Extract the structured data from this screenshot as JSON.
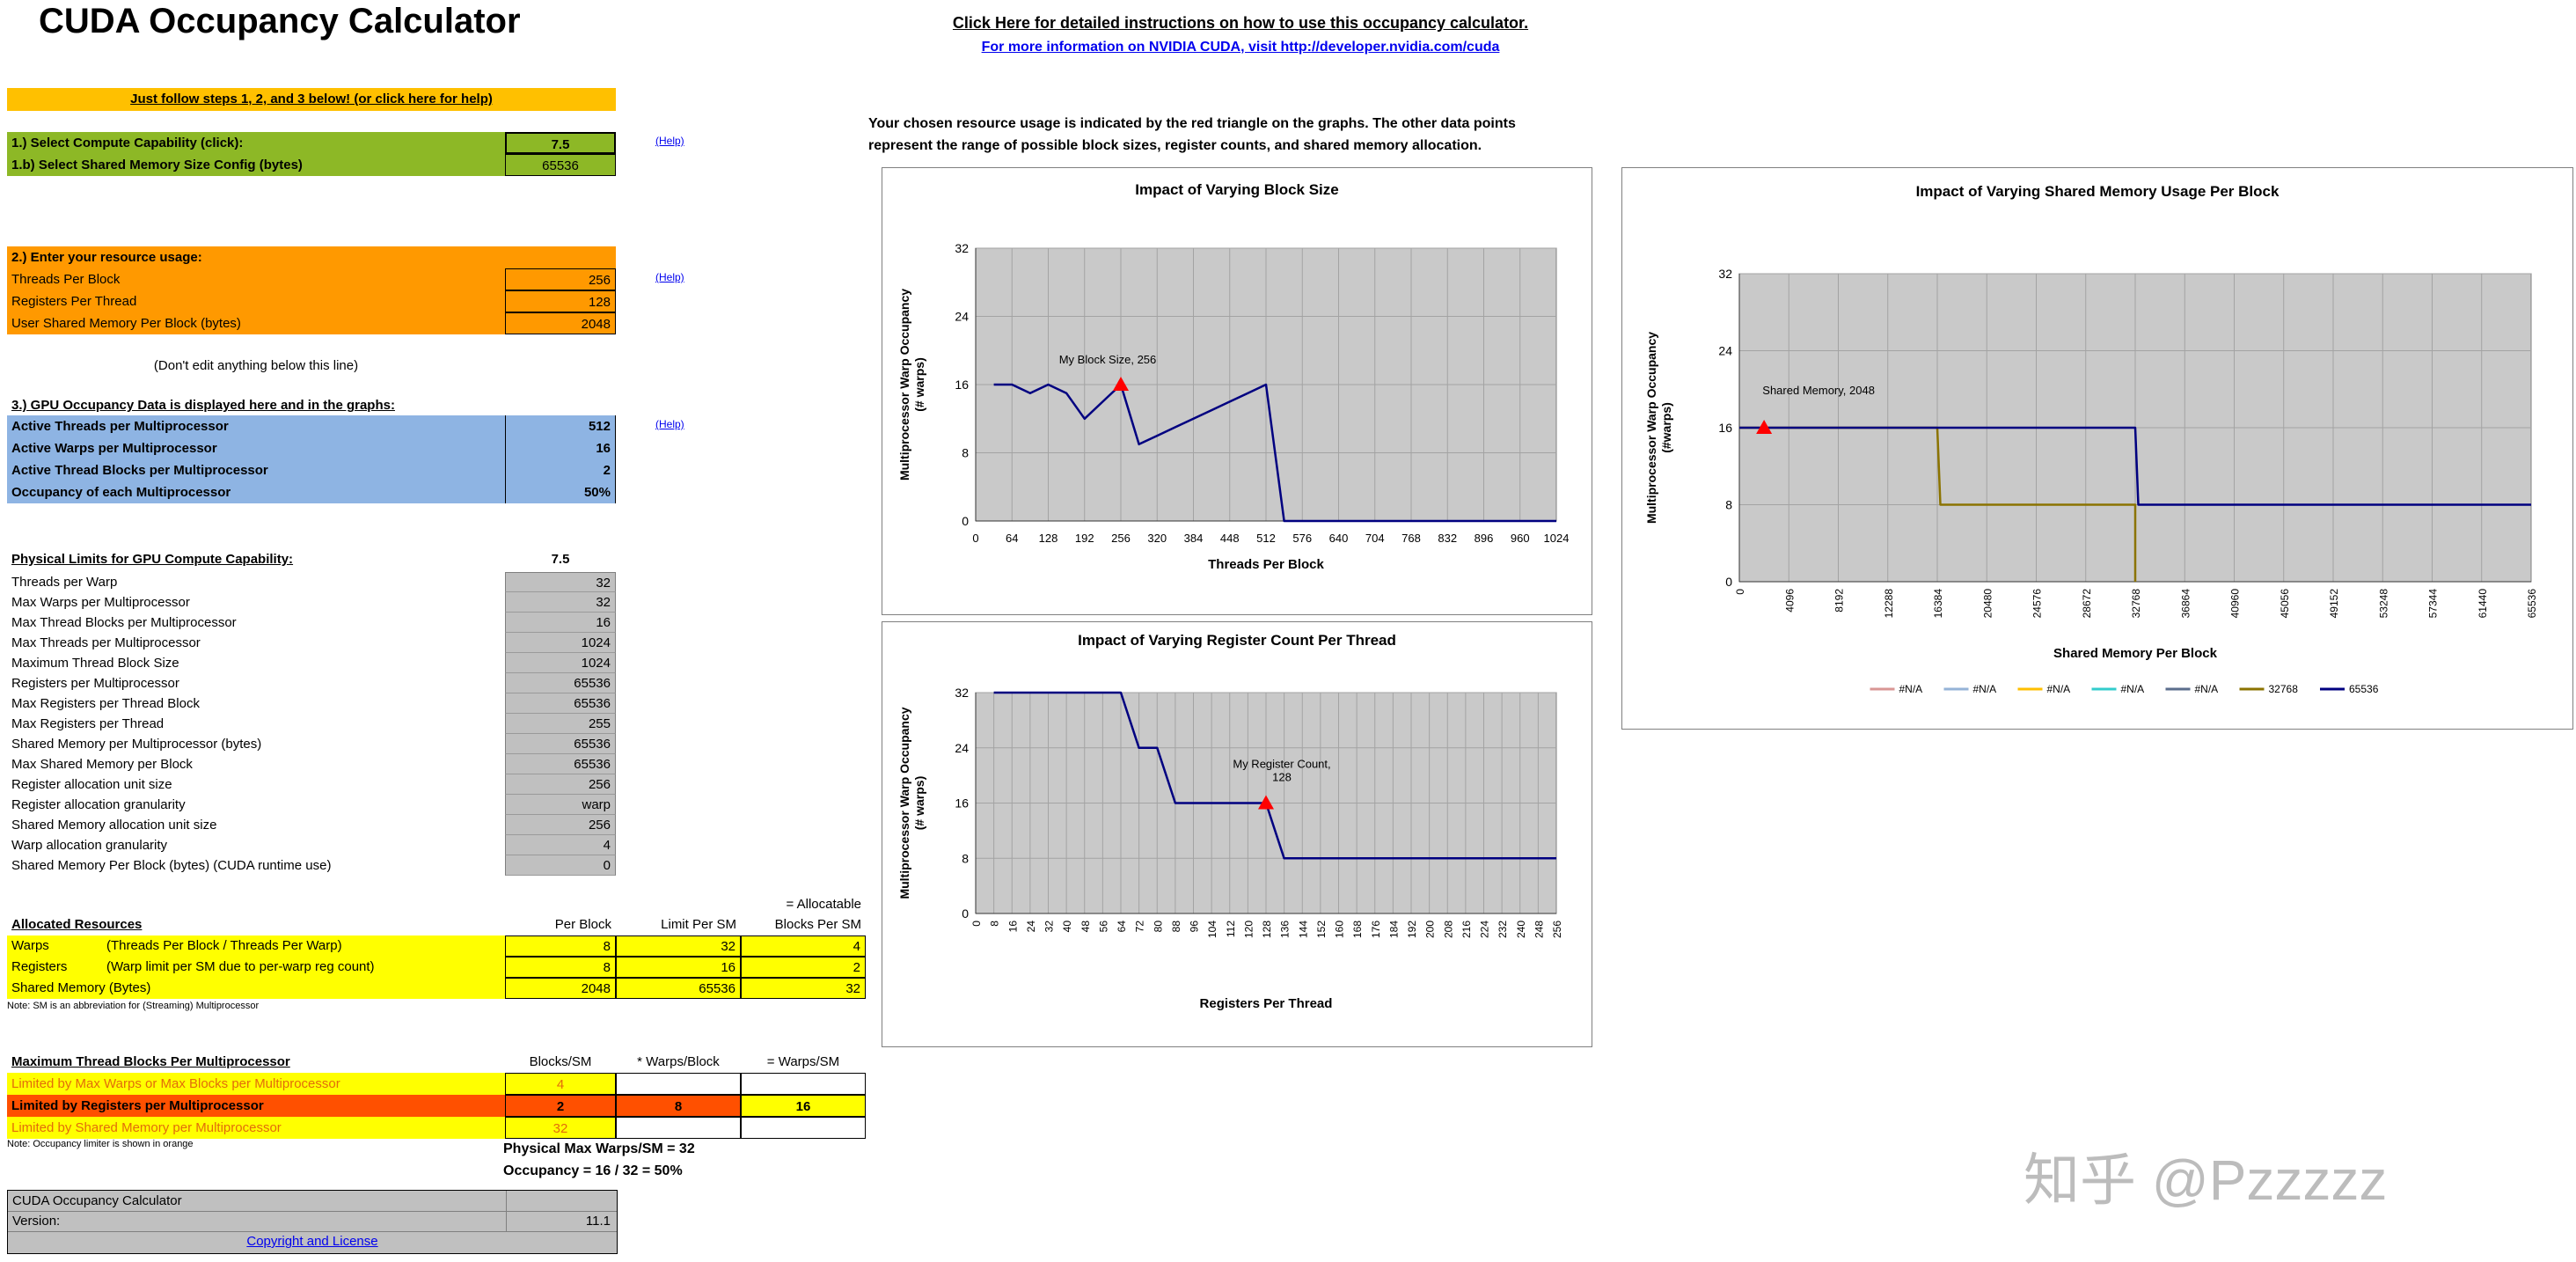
{
  "app": {
    "title": "CUDA Occupancy Calculator"
  },
  "header": {
    "link1": "Click Here for detailed instructions on how to use this occupancy calculator.",
    "link2": "For more information on NVIDIA CUDA, visit http://developer.nvidia.com/cuda",
    "desc1": "Your chosen resource usage is indicated by the red triangle on the graphs.  The other data points",
    "desc2": "represent the range of possible block sizes, register counts, and shared memory allocation."
  },
  "banner": "Just follow steps 1, 2, and 3 below! (or click here for help)",
  "help_label": "(Help)",
  "step1": {
    "rows": [
      {
        "label": "1.) Select Compute Capability (click):",
        "value": "7.5"
      },
      {
        "label": "1.b) Select Shared Memory Size Config (bytes)",
        "value": "65536"
      }
    ]
  },
  "step2": {
    "header": "2.) Enter your resource usage:",
    "rows": [
      {
        "label": "Threads Per Block",
        "value": "256"
      },
      {
        "label": "Registers Per Thread",
        "value": "128"
      },
      {
        "label": "User Shared Memory Per Block (bytes)",
        "value": "2048"
      }
    ]
  },
  "dont_edit": "(Don't edit anything below this line)",
  "step3": {
    "header": "3.) GPU Occupancy Data is displayed here and in the graphs:",
    "rows": [
      {
        "label": "Active Threads per Multiprocessor",
        "value": "512"
      },
      {
        "label": "Active Warps per Multiprocessor",
        "value": "16"
      },
      {
        "label": "Active Thread Blocks per Multiprocessor",
        "value": "2"
      },
      {
        "label": "Occupancy of each Multiprocessor",
        "value": "50%"
      }
    ]
  },
  "physical_limits": {
    "header": "Physical Limits for GPU Compute Capability:",
    "value": "7.5",
    "rows": [
      {
        "label": "Threads per Warp",
        "value": "32"
      },
      {
        "label": "Max Warps per Multiprocessor",
        "value": "32"
      },
      {
        "label": "Max Thread Blocks per Multiprocessor",
        "value": "16"
      },
      {
        "label": "Max Threads per Multiprocessor",
        "value": "1024"
      },
      {
        "label": "Maximum Thread Block Size",
        "value": "1024"
      },
      {
        "label": "Registers per Multiprocessor",
        "value": "65536"
      },
      {
        "label": "Max Registers per Thread Block",
        "value": "65536"
      },
      {
        "label": "Max Registers per Thread",
        "value": "255"
      },
      {
        "label": "Shared Memory per Multiprocessor (bytes)",
        "value": "65536"
      },
      {
        "label": "Max Shared Memory per Block",
        "value": "65536"
      },
      {
        "label": "Register allocation unit size",
        "value": "256"
      },
      {
        "label": "Register allocation granularity",
        "value": "warp"
      },
      {
        "label": "Shared Memory allocation unit size",
        "value": "256"
      },
      {
        "label": "Warp allocation granularity",
        "value": "4"
      },
      {
        "label": "Shared Memory Per Block (bytes) (CUDA runtime use)",
        "value": "0"
      }
    ]
  },
  "allocated": {
    "pre_header": "= Allocatable",
    "header": "Allocated Resources",
    "cols": [
      "Per Block",
      "Limit Per SM",
      "Blocks Per SM"
    ],
    "rows": [
      {
        "name": "Warps",
        "note": "(Threads Per Block / Threads Per Warp)",
        "per_block": "8",
        "limit": "32",
        "blocks": "4"
      },
      {
        "name": "Registers",
        "note": "(Warp limit per SM due to per-warp reg count)",
        "per_block": "8",
        "limit": "16",
        "blocks": "2"
      },
      {
        "name": "Shared Memory (Bytes)",
        "note": "",
        "per_block": "2048",
        "limit": "65536",
        "blocks": "32"
      }
    ],
    "note": "Note: SM is an abbreviation for (Streaming) Multiprocessor"
  },
  "max_blocks": {
    "header": "Maximum Thread Blocks Per Multiprocessor",
    "cols": [
      "Blocks/SM",
      "* Warps/Block",
      "= Warps/SM"
    ],
    "rows": [
      {
        "label": "Limited by Max Warps or Max Blocks per Multiprocessor",
        "v1": "4",
        "v2": "",
        "v3": ""
      },
      {
        "label": "Limited by Registers per Multiprocessor",
        "v1": "2",
        "v2": "8",
        "v3": "16"
      },
      {
        "label": "Limited by Shared Memory per Multiprocessor",
        "v1": "32",
        "v2": "",
        "v3": ""
      }
    ],
    "note": "Note: Occupancy limiter is shown in orange",
    "summary1": "Physical Max Warps/SM = 32",
    "summary2": "Occupancy = 16 / 32 = 50%"
  },
  "footer": {
    "title": "CUDA Occupancy Calculator",
    "version_label": "Version:",
    "version": "11.1",
    "license": "Copyright and License"
  },
  "watermark": "知乎 @Pzzzzz",
  "chart_data": [
    {
      "type": "line",
      "title": "Impact of Varying Block Size",
      "xlabel": "Threads Per Block",
      "ylabel_lines": [
        "Multiprocessor Warp Occupancy",
        "(# warps)"
      ],
      "xlim": [
        0,
        1024
      ],
      "ylim": [
        0,
        32
      ],
      "xtick_step": 64,
      "ytick_step": 8,
      "series": [
        {
          "name": "Occupancy",
          "color": "#000080",
          "points": [
            [
              32,
              16
            ],
            [
              64,
              16
            ],
            [
              96,
              15
            ],
            [
              128,
              16
            ],
            [
              160,
              15
            ],
            [
              192,
              12
            ],
            [
              224,
              14
            ],
            [
              256,
              16
            ],
            [
              288,
              9
            ],
            [
              320,
              10
            ],
            [
              352,
              11
            ],
            [
              384,
              12
            ],
            [
              416,
              13
            ],
            [
              448,
              14
            ],
            [
              480,
              15
            ],
            [
              512,
              16
            ],
            [
              544,
              0
            ],
            [
              576,
              0
            ],
            [
              608,
              0
            ],
            [
              640,
              0
            ],
            [
              672,
              0
            ],
            [
              704,
              0
            ],
            [
              736,
              0
            ],
            [
              768,
              0
            ],
            [
              800,
              0
            ],
            [
              832,
              0
            ],
            [
              864,
              0
            ],
            [
              896,
              0
            ],
            [
              928,
              0
            ],
            [
              960,
              0
            ],
            [
              992,
              0
            ],
            [
              1024,
              0
            ]
          ]
        }
      ],
      "marker": {
        "x": 256,
        "y": 16,
        "color": "#FF0000",
        "label_lines": [
          "My Block Size, 256"
        ]
      }
    },
    {
      "type": "line",
      "title": "Impact of Varying Register Count Per Thread",
      "xlabel": "Registers Per Thread",
      "ylabel_lines": [
        "Multiprocessor Warp Occupancy",
        "(# warps)"
      ],
      "xlim": [
        0,
        256
      ],
      "ylim": [
        0,
        32
      ],
      "xtick_step": 8,
      "ytick_step": 8,
      "series": [
        {
          "name": "Occupancy",
          "color": "#000080",
          "points": [
            [
              8,
              32
            ],
            [
              16,
              32
            ],
            [
              24,
              32
            ],
            [
              32,
              32
            ],
            [
              40,
              32
            ],
            [
              48,
              32
            ],
            [
              56,
              32
            ],
            [
              64,
              32
            ],
            [
              72,
              24
            ],
            [
              80,
              24
            ],
            [
              88,
              16
            ],
            [
              96,
              16
            ],
            [
              104,
              16
            ],
            [
              112,
              16
            ],
            [
              120,
              16
            ],
            [
              128,
              16
            ],
            [
              136,
              8
            ],
            [
              144,
              8
            ],
            [
              152,
              8
            ],
            [
              160,
              8
            ],
            [
              168,
              8
            ],
            [
              176,
              8
            ],
            [
              184,
              8
            ],
            [
              192,
              8
            ],
            [
              200,
              8
            ],
            [
              208,
              8
            ],
            [
              216,
              8
            ],
            [
              224,
              8
            ],
            [
              232,
              8
            ],
            [
              240,
              8
            ],
            [
              248,
              8
            ],
            [
              256,
              8
            ]
          ]
        }
      ],
      "marker": {
        "x": 128,
        "y": 16,
        "color": "#FF0000",
        "label_lines": [
          "My Register Count,",
          "128"
        ]
      }
    },
    {
      "type": "line",
      "title": "Impact of Varying Shared Memory Usage Per Block",
      "xlabel": "Shared Memory Per Block",
      "ylabel_lines": [
        "Multiprocessor Warp Occupancy",
        "(#warps)"
      ],
      "xlim": [
        0,
        65536
      ],
      "ylim": [
        0,
        32
      ],
      "xtick_step": 4096,
      "ytick_step": 8,
      "series": [
        {
          "name": "32768",
          "color": "#8B7300",
          "points": [
            [
              0,
              16
            ],
            [
              16384,
              16
            ],
            [
              16640,
              8
            ],
            [
              32768,
              8
            ],
            [
              32768,
              0
            ]
          ]
        },
        {
          "name": "65536",
          "color": "#000080",
          "points": [
            [
              0,
              16
            ],
            [
              32768,
              16
            ],
            [
              33024,
              8
            ],
            [
              65536,
              8
            ]
          ]
        }
      ],
      "marker": {
        "x": 2048,
        "y": 16,
        "color": "#FF0000",
        "label_lines": [
          "Shared Memory, 2048"
        ]
      },
      "legend": [
        {
          "label": "#N/A",
          "color": "#D99694"
        },
        {
          "label": "#N/A",
          "color": "#95B3D7"
        },
        {
          "label": "#N/A",
          "color": "#FFBF00"
        },
        {
          "label": "#N/A",
          "color": "#33CCCC"
        },
        {
          "label": "#N/A",
          "color": "#5B6E8C"
        },
        {
          "label": "32768",
          "color": "#8B7300"
        },
        {
          "label": "65536",
          "color": "#000080"
        }
      ]
    }
  ]
}
